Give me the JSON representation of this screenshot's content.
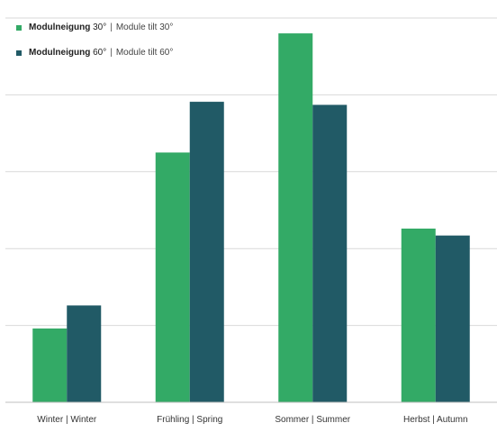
{
  "chart_data": {
    "type": "bar",
    "categories": [
      "Winter | Winter",
      "Frühling | Spring",
      "Sommer | Summer",
      "Herbst | Autumn"
    ],
    "series": [
      {
        "name": "Modulneigung 30° | Module tilt 30°",
        "name_de": "Modulneigung",
        "angle_de": "30°",
        "name_en": "Module tilt 30°",
        "color": "#33aa66",
        "values": [
          9.6,
          32.5,
          48.0,
          22.6
        ]
      },
      {
        "name": "Modulneigung 60° | Module tilt 60°",
        "name_de": "Modulneigung",
        "angle_de": "60°",
        "name_en": "Module tilt 60°",
        "color": "#215a66",
        "values": [
          12.6,
          39.1,
          38.7,
          21.7
        ]
      }
    ],
    "ylim": [
      0,
      50
    ],
    "grid": true,
    "legend_position": "top-left",
    "title": "",
    "xlabel": "",
    "ylabel": ""
  },
  "colors": {
    "grid": "#d9d9d9",
    "axis": "#bfbfbf",
    "tick_text": "#333333"
  }
}
